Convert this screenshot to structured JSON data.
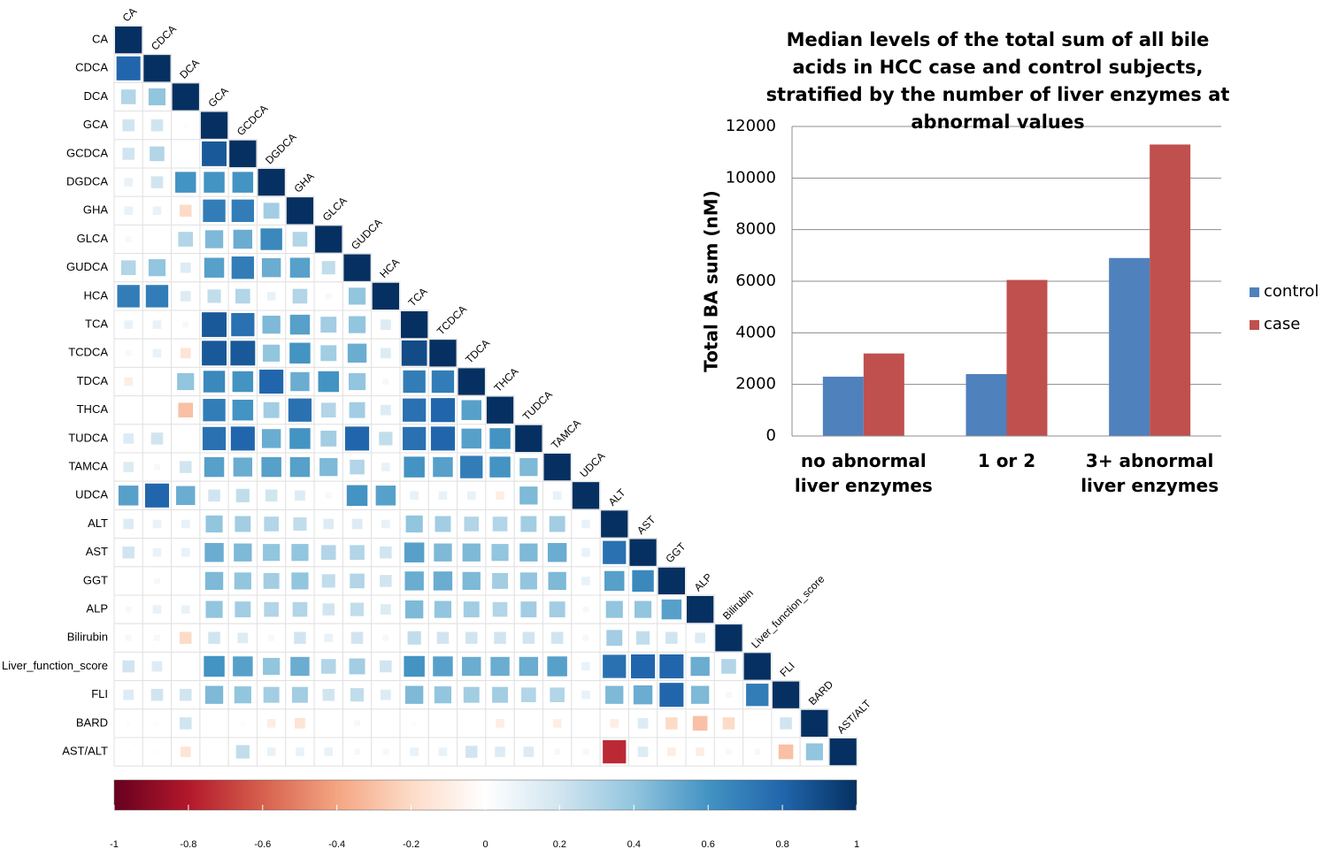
{
  "chart_data": [
    {
      "type": "corrplot",
      "labels": [
        "CA",
        "CDCA",
        "DCA",
        "GCA",
        "GCDCA",
        "DGDCA",
        "GHA",
        "GLCA",
        "GUDCA",
        "HCA",
        "TCA",
        "TCDCA",
        "TDCA",
        "THCA",
        "TUDCA",
        "TAMCA",
        "UDCA",
        "ALT",
        "AST",
        "GGT",
        "ALP",
        "Bilirubin",
        "Liver_function_score",
        "FLI",
        "BARD",
        "AST/ALT"
      ],
      "values": [
        [
          1
        ],
        [
          0.8,
          1
        ],
        [
          0.3,
          0.4,
          1
        ],
        [
          0.2,
          0.2,
          0.02,
          1
        ],
        [
          0.2,
          0.3,
          0,
          0.85,
          1
        ],
        [
          0.1,
          0.2,
          0.6,
          0.6,
          0.6,
          1
        ],
        [
          0.1,
          0.1,
          -0.2,
          0.7,
          0.7,
          0.35,
          1
        ],
        [
          0.05,
          0,
          0.3,
          0.45,
          0.5,
          0.65,
          0.3,
          1
        ],
        [
          0.3,
          0.4,
          0.15,
          0.55,
          0.7,
          0.5,
          0.55,
          0.25,
          1
        ],
        [
          0.7,
          0.7,
          0.15,
          0.25,
          0.3,
          0.1,
          0.3,
          0.05,
          0.4,
          1
        ],
        [
          0.1,
          0.1,
          0.05,
          0.85,
          0.75,
          0.45,
          0.55,
          0.35,
          0.4,
          0.15,
          1
        ],
        [
          0.05,
          0.1,
          -0.15,
          0.85,
          0.85,
          0.4,
          0.6,
          0.35,
          0.5,
          0.15,
          0.9,
          1
        ],
        [
          -0.1,
          0,
          0.4,
          0.65,
          0.6,
          0.8,
          0.5,
          0.6,
          0.4,
          0.05,
          0.7,
          0.7,
          1
        ],
        [
          0,
          0,
          -0.3,
          0.7,
          0.6,
          0.35,
          0.75,
          0.3,
          0.35,
          0.15,
          0.75,
          0.8,
          0.55,
          1
        ],
        [
          0.15,
          0.2,
          0,
          0.75,
          0.8,
          0.5,
          0.6,
          0.35,
          0.8,
          0.25,
          0.75,
          0.8,
          0.55,
          0.6,
          1
        ],
        [
          0.15,
          0.05,
          0.2,
          0.55,
          0.5,
          0.55,
          0.55,
          0.45,
          0.3,
          0.1,
          0.6,
          0.55,
          0.7,
          0.6,
          0.45,
          1
        ],
        [
          0.55,
          0.8,
          0.5,
          0.2,
          0.25,
          0.2,
          0.15,
          0.05,
          0.6,
          0.55,
          0.1,
          0.1,
          0.1,
          -0.1,
          0.45,
          0.1,
          1
        ],
        [
          0.15,
          0.1,
          0.1,
          0.4,
          0.35,
          0.3,
          0.25,
          0.15,
          0.15,
          0.1,
          0.4,
          0.35,
          0.3,
          0.3,
          0.35,
          0.35,
          0.1,
          1
        ],
        [
          0.2,
          0.1,
          0.1,
          0.5,
          0.45,
          0.4,
          0.4,
          0.3,
          0.3,
          0.2,
          0.55,
          0.45,
          0.45,
          0.4,
          0.45,
          0.5,
          0.1,
          0.75,
          1
        ],
        [
          0,
          0.05,
          0,
          0.45,
          0.4,
          0.35,
          0.4,
          0.25,
          0.3,
          0.2,
          0.5,
          0.5,
          0.45,
          0.35,
          0.4,
          0.45,
          0.1,
          0.55,
          0.65,
          1
        ],
        [
          0.05,
          0.1,
          0.1,
          0.4,
          0.35,
          0.3,
          0.3,
          0.2,
          0.25,
          0.15,
          0.45,
          0.4,
          0.35,
          0.3,
          0.35,
          0.35,
          0.05,
          0.4,
          0.4,
          0.55,
          1
        ],
        [
          0.05,
          0.05,
          -0.2,
          0.2,
          0.15,
          0.05,
          0.2,
          0.1,
          0.2,
          0.05,
          0.25,
          0.2,
          0.2,
          0.2,
          0.2,
          0.2,
          0.05,
          0.35,
          0.25,
          0.2,
          0.15,
          1
        ],
        [
          0.2,
          0.15,
          0,
          0.6,
          0.55,
          0.4,
          0.5,
          0.3,
          0.35,
          0.2,
          0.6,
          0.55,
          0.5,
          0.5,
          0.5,
          0.55,
          0.1,
          0.75,
          0.8,
          0.8,
          0.5,
          0.3,
          1
        ],
        [
          0.15,
          0.2,
          0.2,
          0.45,
          0.4,
          0.35,
          0.35,
          0.2,
          0.25,
          0.15,
          0.45,
          0.4,
          0.35,
          0.35,
          0.3,
          0.3,
          0.1,
          0.45,
          0.5,
          0.8,
          0.45,
          0.05,
          0.7,
          1
        ],
        [
          0.02,
          0.02,
          0.2,
          0,
          0.02,
          -0.1,
          -0.15,
          0,
          0.05,
          0,
          0.02,
          0,
          0,
          -0.1,
          0,
          -0.1,
          0,
          -0.1,
          0.15,
          -0.2,
          -0.3,
          -0.2,
          0,
          0.2,
          1
        ],
        [
          0.02,
          0.02,
          -0.15,
          0,
          0.25,
          0.1,
          0.1,
          0.1,
          0.05,
          0.05,
          0.1,
          0.1,
          0.2,
          0.15,
          0.15,
          0.05,
          -0.05,
          -0.75,
          0.15,
          -0.1,
          -0.1,
          -0.05,
          0.05,
          -0.3,
          0.4,
          1
        ]
      ],
      "colors": [
        "#67001f",
        "#b2182b",
        "#d6604d",
        "#f4a582",
        "#fddbc7",
        "#ffffff",
        "#d1e5f0",
        "#92c5de",
        "#4393c3",
        "#2166ac",
        "#053061"
      ],
      "clim": [
        -1,
        1
      ],
      "cticks": [
        -1,
        -0.8,
        -0.6,
        -0.4,
        -0.2,
        0,
        0.2,
        0.4,
        0.6,
        0.8,
        1
      ]
    },
    {
      "type": "bar",
      "title": "Median levels of the total sum of all bile acids in HCC case and control subjects, stratified by the number of liver enzymes at abnormal values",
      "y_label": "Total BA sum (nM)",
      "categories": [
        "no abnormal liver enzymes",
        "1 or 2",
        "3+ abnormal liver enzymes"
      ],
      "series": [
        {
          "name": "control",
          "color": "#4f81bd",
          "values": [
            2300,
            2400,
            6900
          ]
        },
        {
          "name": "case",
          "color": "#c0504d",
          "values": [
            3200,
            6050,
            11300
          ]
        }
      ],
      "ylim": [
        0,
        12000
      ],
      "yticks": [
        0,
        2000,
        4000,
        6000,
        8000,
        10000,
        12000
      ],
      "grid": true,
      "legend": "right"
    }
  ]
}
